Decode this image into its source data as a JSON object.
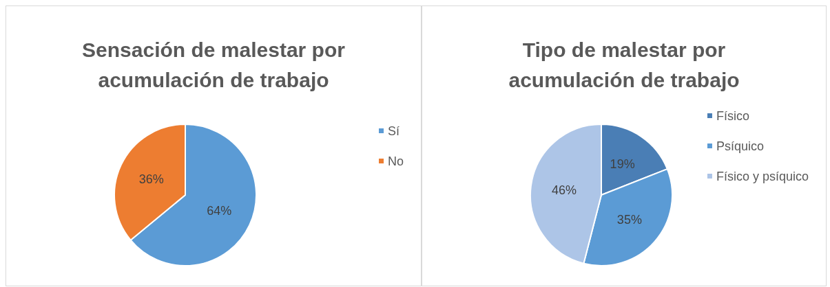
{
  "chart_data": [
    {
      "type": "pie",
      "title": "Sensación de malestar por\nacumulación de trabajo",
      "categories": [
        "Sí",
        "No"
      ],
      "values": [
        64,
        36
      ],
      "value_labels": [
        "64%",
        "36%"
      ],
      "colors": [
        "#5b9bd5",
        "#ed7d31"
      ],
      "legend": "right"
    },
    {
      "type": "pie",
      "title": "Tipo de malestar por\nacumulación de trabajo",
      "categories": [
        "Físico",
        "Psíquico",
        "Físico y psíquico"
      ],
      "values": [
        19,
        35,
        46
      ],
      "value_labels": [
        "19%",
        "35%",
        "46%"
      ],
      "colors": [
        "#4a7eb5",
        "#5b9bd5",
        "#adc5e7"
      ],
      "legend": "right"
    }
  ]
}
